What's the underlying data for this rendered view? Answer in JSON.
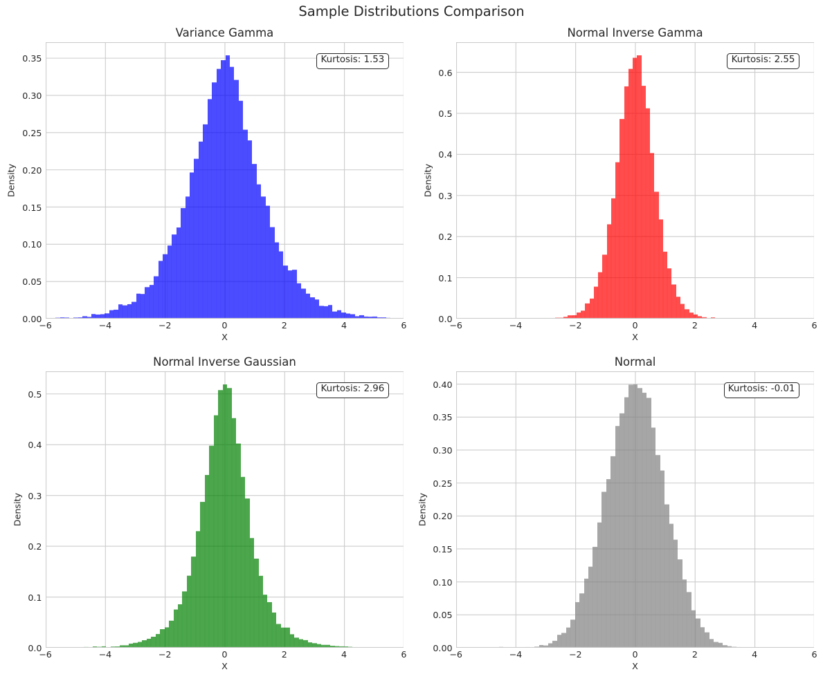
{
  "figure": {
    "suptitle": "Sample Distributions Comparison",
    "background": "#ffffff",
    "text_color": "#262626",
    "grid_color": "#cccccc",
    "axes_background": "#ffffff"
  },
  "chart_data": [
    {
      "type": "histogram",
      "title": "Variance Gamma",
      "xlabel": "X",
      "ylabel": "Density",
      "annotation": "Kurtosis: 1.53",
      "kurtosis": 1.53,
      "color_name": "blue",
      "fill": "rgba(0,0,255,0.7)",
      "xlim": [
        -6,
        6
      ],
      "ylim_margin": 1.05,
      "x_tick_values": [
        -6,
        -4,
        -2,
        0,
        2,
        4,
        6
      ],
      "x_tick_labels": [
        "−6",
        "−4",
        "−2",
        "0",
        "2",
        "4",
        "6"
      ],
      "y_tick_values": [
        0.0,
        0.05,
        0.1,
        0.15,
        0.2,
        0.25,
        0.3,
        0.35
      ],
      "y_tick_labels": [
        "0.00",
        "0.05",
        "0.10",
        "0.15",
        "0.20",
        "0.25",
        "0.30",
        "0.35"
      ],
      "bin_start": -6.115,
      "bin_width": 0.1495,
      "heights": [
        0.000673,
        0.000898,
        0.000898,
        0.001347,
        0.001796,
        0.001571,
        0.000898,
        0.001571,
        0.001796,
        0.003367,
        0.002469,
        0.006285,
        0.005612,
        0.006061,
        0.007183,
        0.011448,
        0.012122,
        0.019305,
        0.017958,
        0.019529,
        0.022672,
        0.033672,
        0.033223,
        0.042426,
        0.045344,
        0.057017,
        0.077669,
        0.086648,
        0.098321,
        0.113136,
        0.122564,
        0.148604,
        0.164093,
        0.196417,
        0.214824,
        0.237946,
        0.261067,
        0.294963,
        0.31741,
        0.335593,
        0.347266,
        0.353776,
        0.338287,
        0.320778,
        0.292718,
        0.253883,
        0.239517,
        0.207866,
        0.180479,
        0.164093,
        0.151746,
        0.123013,
        0.102586,
        0.090464,
        0.071384,
        0.064874,
        0.065772,
        0.047589,
        0.040406,
        0.033672,
        0.028733,
        0.025815,
        0.017285,
        0.016836,
        0.018407,
        0.009653,
        0.011448,
        0.008306,
        0.006959,
        0.006061,
        0.003367,
        0.004714,
        0.002918,
        0.002694,
        0.002918,
        0.001796,
        0.001796,
        0.001122,
        0.000898,
        0.000673
      ]
    },
    {
      "type": "histogram",
      "title": "Normal Inverse Gamma",
      "xlabel": "X",
      "ylabel": "Density",
      "annotation": "Kurtosis: 2.55",
      "kurtosis": 2.55,
      "color_name": "red",
      "fill": "rgba(255,0,0,0.7)",
      "xlim": [
        -6,
        6
      ],
      "ylim_margin": 1.05,
      "x_tick_values": [
        -6,
        -4,
        -2,
        0,
        2,
        4,
        6
      ],
      "x_tick_labels": [
        "−6",
        "−4",
        "−2",
        "0",
        "2",
        "4",
        "6"
      ],
      "y_tick_values": [
        0.0,
        0.1,
        0.2,
        0.3,
        0.4,
        0.5,
        0.6
      ],
      "y_tick_labels": [
        "0.0",
        "0.1",
        "0.2",
        "0.3",
        "0.4",
        "0.5",
        "0.6"
      ],
      "bin_start": -3.4225,
      "bin_width": 0.145,
      "heights": [
        0.000462,
        0.000462,
        0.000913,
        0.000685,
        0.00137,
        0.002511,
        0.002511,
        0.004565,
        0.008217,
        0.008446,
        0.015065,
        0.01963,
        0.037206,
        0.049075,
        0.078064,
        0.113215,
        0.155899,
        0.229855,
        0.293082,
        0.380961,
        0.486187,
        0.56562,
        0.608304,
        0.635239,
        0.641173,
        0.56699,
        0.512208,
        0.40333,
        0.30906,
        0.241724,
        0.163204,
        0.122574,
        0.083314,
        0.053412,
        0.036065,
        0.023054,
        0.014837,
        0.010272,
        0.006163,
        0.003652,
        0.00137,
        0.003196,
        0.001598,
        0.001141,
        0.000692,
        0.000685,
        0.000231,
        0.0
      ]
    },
    {
      "type": "histogram",
      "title": "Normal Inverse Gaussian",
      "xlabel": "X",
      "ylabel": "Density",
      "annotation": "Kurtosis: 2.96",
      "kurtosis": 2.96,
      "color_name": "green",
      "fill": "rgba(0,128,0,0.7)",
      "xlim": [
        -6,
        6
      ],
      "ylim_margin": 1.05,
      "x_tick_values": [
        -6,
        -4,
        -2,
        0,
        2,
        4,
        6
      ],
      "x_tick_labels": [
        "−6",
        "−4",
        "−2",
        "0",
        "2",
        "4",
        "6"
      ],
      "y_tick_values": [
        0.0,
        0.1,
        0.2,
        0.3,
        0.4,
        0.5
      ],
      "y_tick_labels": [
        "0.0",
        "0.1",
        "0.2",
        "0.3",
        "0.4",
        "0.5"
      ],
      "bin_start": -5.925,
      "bin_width": 0.15,
      "heights": [
        0.0,
        0.0,
        0.000445,
        0.000445,
        0.000223,
        0.000445,
        0.001336,
        0.0,
        0.001558,
        0.001113,
        0.002671,
        0.002003,
        0.002894,
        0.001336,
        0.002449,
        0.002671,
        0.004897,
        0.004897,
        0.008236,
        0.009794,
        0.011575,
        0.014914,
        0.017808,
        0.021814,
        0.027157,
        0.036728,
        0.04029,
        0.053423,
        0.07546,
        0.085699,
        0.111075,
        0.142016,
        0.179635,
        0.229719,
        0.287371,
        0.340349,
        0.398001,
        0.457879,
        0.507518,
        0.518648,
        0.511525,
        0.452314,
        0.40223,
        0.336565,
        0.294049,
        0.21614,
        0.175628,
        0.141793,
        0.10462,
        0.089929,
        0.06945,
        0.046968,
        0.039845,
        0.039845,
        0.026711,
        0.020034,
        0.016917,
        0.015137,
        0.010685,
        0.009126,
        0.007346,
        0.005787,
        0.005787,
        0.004007,
        0.003339,
        0.002894,
        0.002671,
        0.002003,
        0.00089,
        0.001336,
        0.001113,
        0.001113,
        0.00089,
        0.000668,
        0.000445,
        0.0,
        0.0,
        0.000445,
        0.0,
        0.0
      ]
    },
    {
      "type": "histogram",
      "title": "Normal",
      "xlabel": "X",
      "ylabel": "Density",
      "annotation": "Kurtosis: -0.01",
      "kurtosis": -0.01,
      "color_name": "gray",
      "fill": "rgba(128,128,128,0.7)",
      "xlim": [
        -6,
        6
      ],
      "ylim_margin": 1.05,
      "x_tick_values": [
        -6,
        -4,
        -2,
        0,
        2,
        4,
        6
      ],
      "x_tick_labels": [
        "−6",
        "−4",
        "−2",
        "0",
        "2",
        "4",
        "6"
      ],
      "y_tick_values": [
        0.0,
        0.05,
        0.1,
        0.15,
        0.2,
        0.25,
        0.3,
        0.35,
        0.4
      ],
      "y_tick_labels": [
        "0.00",
        "0.05",
        "0.10",
        "0.15",
        "0.20",
        "0.25",
        "0.30",
        "0.35",
        "0.40"
      ],
      "bin_start": -5.925,
      "bin_width": 0.15,
      "heights": [
        0.0,
        0.0,
        0.0,
        0.0,
        0.0,
        0.0,
        0.0,
        0.0,
        0.0,
        0.001328,
        0.0,
        0.0,
        0.0,
        0.0,
        0.000664,
        0.001107,
        0.000664,
        0.001771,
        0.004206,
        0.003542,
        0.006862,
        0.010625,
        0.0197,
        0.022577,
        0.030767,
        0.042719,
        0.069281,
        0.082561,
        0.104917,
        0.123067,
        0.15317,
        0.190135,
        0.236617,
        0.255874,
        0.290625,
        0.336443,
        0.3557,
        0.380048,
        0.399084,
        0.399526,
        0.393993,
        0.38691,
        0.379163,
        0.334008,
        0.292396,
        0.268933,
        0.217581,
        0.188143,
        0.164016,
        0.134135,
        0.103589,
        0.084553,
        0.056885,
        0.04449,
        0.03121,
        0.023462,
        0.013281,
        0.008854,
        0.007526,
        0.003984,
        0.002435,
        0.001549,
        0.001107,
        0.000443,
        0.000221,
        0.000221,
        0.0,
        0.0,
        0.0,
        0.0,
        0.0,
        0.0,
        0.0,
        0.0,
        0.0,
        0.0,
        0.0,
        0.0,
        0.0,
        0.0
      ]
    }
  ]
}
